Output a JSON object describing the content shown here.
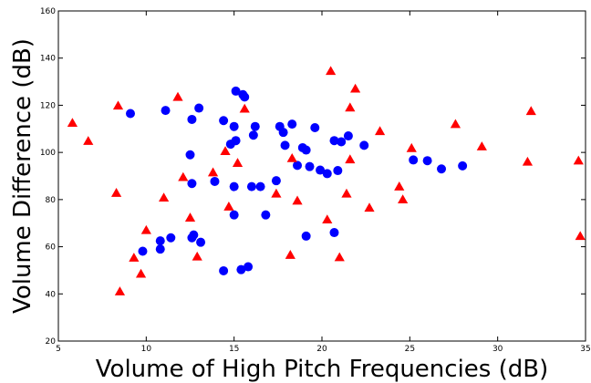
{
  "chart_data": {
    "type": "scatter",
    "title": "",
    "xlabel": "Volume of High Pitch Frequencies (dB)",
    "ylabel": "Volume Difference (dB)",
    "xlim": [
      5,
      35
    ],
    "ylim": [
      20,
      160
    ],
    "xticks": [
      5,
      10,
      15,
      20,
      25,
      30,
      35
    ],
    "yticks": [
      20,
      40,
      60,
      80,
      100,
      120,
      140,
      160
    ],
    "grid": false,
    "legend": "none",
    "series": [
      {
        "marker": "circle",
        "color": "#0000ff",
        "points": [
          [
            9.1,
            116.5
          ],
          [
            11.1,
            117.8
          ],
          [
            12.5,
            99
          ],
          [
            12.6,
            114
          ],
          [
            12.6,
            86.8
          ],
          [
            12.7,
            65
          ],
          [
            12.6,
            63.8
          ],
          [
            13.0,
            118.8
          ],
          [
            13.1,
            61.9
          ],
          [
            10.8,
            62.5
          ],
          [
            10.8,
            59
          ],
          [
            11.4,
            63.8
          ],
          [
            9.8,
            58.1
          ],
          [
            13.9,
            87.7
          ],
          [
            14.4,
            113.5
          ],
          [
            14.8,
            103.5
          ],
          [
            15.0,
            111
          ],
          [
            15.1,
            126
          ],
          [
            15.5,
            124.5
          ],
          [
            15.6,
            123.5
          ],
          [
            15.1,
            105
          ],
          [
            15.0,
            85.5
          ],
          [
            15.0,
            73.5
          ],
          [
            14.4,
            49.8
          ],
          [
            15.4,
            50.3
          ],
          [
            15.8,
            51.5
          ],
          [
            16.1,
            107.3
          ],
          [
            16.2,
            111
          ],
          [
            16.0,
            85.5
          ],
          [
            16.5,
            85.5
          ],
          [
            16.8,
            73.5
          ],
          [
            17.4,
            88
          ],
          [
            17.6,
            111
          ],
          [
            17.8,
            108.5
          ],
          [
            17.9,
            103
          ],
          [
            18.3,
            112
          ],
          [
            18.6,
            94.5
          ],
          [
            18.9,
            102
          ],
          [
            19.1,
            101
          ],
          [
            19.1,
            64.5
          ],
          [
            19.3,
            94
          ],
          [
            19.6,
            110.5
          ],
          [
            19.9,
            92.5
          ],
          [
            20.3,
            91
          ],
          [
            20.7,
            105
          ],
          [
            20.7,
            66
          ],
          [
            20.9,
            92.3
          ],
          [
            21.1,
            104.5
          ],
          [
            21.5,
            107
          ],
          [
            22.4,
            103
          ],
          [
            25.2,
            96.8
          ],
          [
            26.0,
            96.5
          ],
          [
            26.8,
            93
          ],
          [
            28.0,
            94.3
          ]
        ]
      },
      {
        "marker": "triangle",
        "color": "#ff0000",
        "points": [
          [
            5.8,
            112.5
          ],
          [
            6.7,
            104.8
          ],
          [
            8.3,
            82.8
          ],
          [
            8.4,
            119.8
          ],
          [
            8.5,
            41
          ],
          [
            9.3,
            55.3
          ],
          [
            9.7,
            48.5
          ],
          [
            10.0,
            67
          ],
          [
            11.0,
            80.8
          ],
          [
            11.8,
            123.5
          ],
          [
            12.1,
            89.5
          ],
          [
            12.5,
            72.3
          ],
          [
            12.9,
            55.8
          ],
          [
            13.8,
            91.5
          ],
          [
            14.5,
            100.5
          ],
          [
            14.7,
            77
          ],
          [
            15.2,
            95.5
          ],
          [
            15.6,
            118.5
          ],
          [
            17.4,
            82.5
          ],
          [
            18.2,
            56.5
          ],
          [
            18.3,
            97.5
          ],
          [
            18.6,
            79.5
          ],
          [
            20.3,
            71.5
          ],
          [
            20.5,
            134.5
          ],
          [
            21.0,
            55.5
          ],
          [
            21.4,
            82.5
          ],
          [
            21.6,
            97
          ],
          [
            21.6,
            119
          ],
          [
            21.9,
            127
          ],
          [
            22.7,
            76.5
          ],
          [
            23.3,
            109
          ],
          [
            24.4,
            85.5
          ],
          [
            24.6,
            80
          ],
          [
            25.1,
            101.8
          ],
          [
            27.6,
            112
          ],
          [
            29.1,
            102.5
          ],
          [
            31.7,
            96
          ],
          [
            31.9,
            117.5
          ],
          [
            34.6,
            96.5
          ],
          [
            34.7,
            64.5
          ]
        ]
      }
    ]
  }
}
